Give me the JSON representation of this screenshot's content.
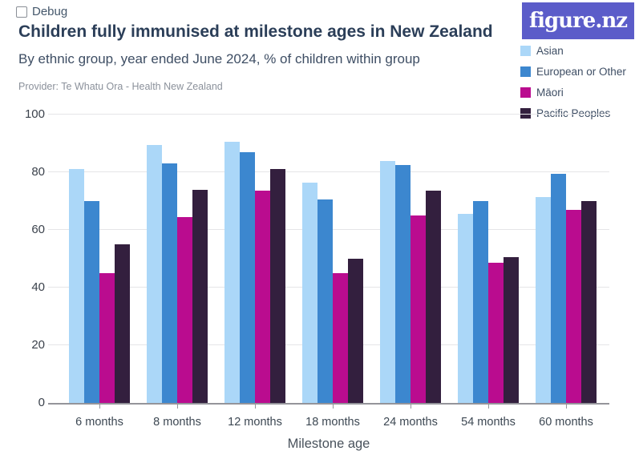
{
  "debug": {
    "label": "Debug"
  },
  "header": {
    "title": "Children fully immunised at milestone ages in New Zealand",
    "subtitle": "By ethnic group, year ended June 2024, % of children within group",
    "provider": "Provider: Te Whatu Ora - Health New Zealand"
  },
  "logo": {
    "text": "figure.nz",
    "background": "#5b5cc9"
  },
  "chart_data": {
    "type": "bar",
    "title": "Children fully immunised at milestone ages in New Zealand",
    "subtitle": "By ethnic group, year ended June 2024, % of children within group",
    "categories": [
      "6 months",
      "8 months",
      "12 months",
      "18 months",
      "24 months",
      "54 months",
      "60 months"
    ],
    "series": [
      {
        "name": "Asian",
        "color": "#abd7f8",
        "values": [
          81,
          89.5,
          90.5,
          76.5,
          84,
          65.5,
          71.5
        ]
      },
      {
        "name": "European or Other",
        "color": "#3c87cf",
        "values": [
          70,
          83,
          87,
          70.5,
          82.5,
          70,
          79.5
        ]
      },
      {
        "name": "Māori",
        "color": "#ba0c8f",
        "values": [
          45,
          64.5,
          73.5,
          45,
          65,
          48.5,
          67
        ]
      },
      {
        "name": "Pacific Peoples",
        "color": "#331f3e",
        "values": [
          55,
          74,
          81,
          50,
          73.5,
          50.5,
          70
        ]
      }
    ],
    "xlabel": "Milestone age",
    "ylabel": "",
    "ylim": [
      0,
      100
    ],
    "yticks": [
      0,
      20,
      40,
      60,
      80,
      100
    ],
    "grid": true,
    "legend_position": "top-right"
  }
}
